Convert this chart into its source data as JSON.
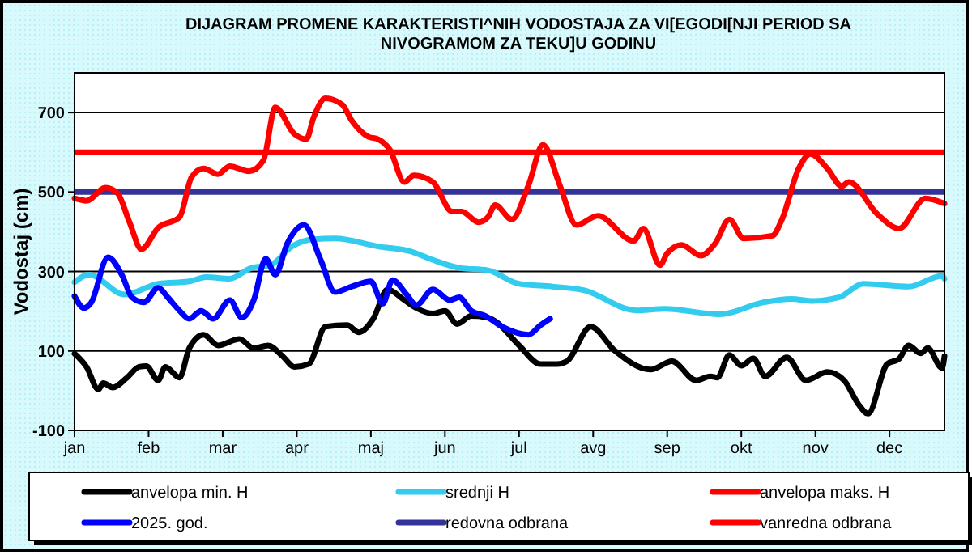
{
  "chart_data": {
    "type": "line",
    "title": "DIJAGRAM PROMENE  KARAKTERISTI^NIH  VODOSTAJA ZA VI[EGODI[NJI PERIOD  SA\nNIVOGRAMOM ZA TEKU]U  GODINU",
    "ylabel": "Vodostaj (cm)",
    "xlim": [
      "--01-01",
      "--12-31"
    ],
    "xticks": [
      {
        "value": "--01-01",
        "label": "jan"
      },
      {
        "value": "--02-01",
        "label": "feb"
      },
      {
        "value": "--03-04",
        "label": "mar"
      },
      {
        "value": "--04-04",
        "label": "apr"
      },
      {
        "value": "--05-05",
        "label": "maj"
      },
      {
        "value": "--06-05",
        "label": "jun"
      },
      {
        "value": "--07-06",
        "label": "jul"
      },
      {
        "value": "--08-06",
        "label": "avg"
      },
      {
        "value": "--09-06",
        "label": "sep"
      },
      {
        "value": "--10-07",
        "label": "okt"
      },
      {
        "value": "--11-07",
        "label": "nov"
      },
      {
        "value": "--12-08",
        "label": "dec"
      }
    ],
    "ylim": [
      -100,
      800
    ],
    "yticks": [
      -100,
      100,
      300,
      500,
      700
    ],
    "grid": "y",
    "legend": "bottom",
    "series": [
      {
        "name": "anvelopa min. H",
        "color": "#000000",
        "x": [
          "--01-01",
          "--01-06",
          "--01-11",
          "--01-13",
          "--01-17",
          "--01-23",
          "--01-28",
          "--01-31",
          "--02-05",
          "--02-08",
          "--02-14",
          "--02-18",
          "--02-24",
          "--03-02",
          "--03-11",
          "--03-17",
          "--03-23",
          "--03-29",
          "--04-03",
          "--04-09",
          "--04-16",
          "--04-25",
          "--04-30",
          "--05-06",
          "--05-12",
          "--05-19",
          "--05-24",
          "--05-31",
          "--06-05",
          "--06-10",
          "--06-16",
          "--06-22",
          "--06-26",
          "--07-06",
          "--07-15",
          "--07-22",
          "--07-26",
          "--08-05",
          "--08-15",
          "--08-30",
          "--09-08",
          "--09-18",
          "--09-24",
          "--09-27",
          "--10-02",
          "--10-07",
          "--10-12",
          "--10-17",
          "--10-26",
          "--11-03",
          "--11-12",
          "--11-19",
          "--11-25",
          "--11-29",
          "--12-07",
          "--12-12",
          "--12-16",
          "--12-21",
          "--12-24",
          "--12-30",
          "--12-31"
        ],
        "values": [
          93,
          60,
          3,
          19,
          8,
          33,
          60,
          62,
          26,
          60,
          33,
          107,
          141,
          114,
          130,
          107,
          114,
          87,
          60,
          67,
          161,
          165,
          147,
          181,
          255,
          228,
          208,
          194,
          201,
          168,
          188,
          185,
          175,
          114,
          67,
          67,
          74,
          161,
          101,
          53,
          74,
          26,
          36,
          33,
          90,
          63,
          81,
          36,
          84,
          26,
          47,
          26,
          -34,
          -58,
          67,
          80,
          114,
          94,
          107,
          57,
          87
        ]
      },
      {
        "name": "srednji H",
        "color": "#33ccee",
        "x": [
          "--01-01",
          "--01-07",
          "--01-22",
          "--02-05",
          "--02-18",
          "--02-25",
          "--03-07",
          "--03-16",
          "--03-24",
          "--04-02",
          "--04-11",
          "--04-20",
          "--05-08",
          "--05-22",
          "--05-31",
          "--06-11",
          "--06-23",
          "--07-06",
          "--07-20",
          "--08-02",
          "--08-24",
          "--09-05",
          "--09-28",
          "--10-16",
          "--10-28",
          "--11-06",
          "--11-17",
          "--11-27",
          "--12-16",
          "--12-30",
          "--12-31"
        ],
        "values": [
          273,
          292,
          242,
          269,
          275,
          286,
          282,
          309,
          316,
          363,
          381,
          383,
          363,
          350,
          329,
          309,
          303,
          269,
          262,
          253,
          202,
          206,
          192,
          222,
          231,
          226,
          235,
          269,
          262,
          289,
          282
        ]
      },
      {
        "name": "anvelopa maks. H",
        "color": "#ff0000",
        "x": [
          "--01-01",
          "--01-06",
          "--01-14",
          "--01-19",
          "--01-24",
          "--01-29",
          "--02-05",
          "--02-14",
          "--02-19",
          "--02-24",
          "--03-02",
          "--03-07",
          "--03-15",
          "--03-21",
          "--03-26",
          "--04-03",
          "--04-08",
          "--04-11",
          "--04-16",
          "--04-23",
          "--04-27",
          "--05-04",
          "--05-08",
          "--05-13",
          "--05-19",
          "--05-23",
          "--05-31",
          "--06-08",
          "--06-12",
          "--06-19",
          "--06-23",
          "--06-26",
          "--07-03",
          "--07-10",
          "--07-16",
          "--07-23",
          "--07-30",
          "--08-08",
          "--08-23",
          "--08-27",
          "--09-03",
          "--09-06",
          "--09-12",
          "--09-20",
          "--09-26",
          "--10-02",
          "--10-08",
          "--10-20",
          "--10-24",
          "--10-31",
          "--11-05",
          "--11-12",
          "--11-18",
          "--11-21",
          "--12-03",
          "--12-12",
          "--12-23",
          "--12-31"
        ],
        "values": [
          484,
          478,
          511,
          497,
          424,
          356,
          410,
          437,
          538,
          559,
          545,
          565,
          552,
          579,
          713,
          646,
          633,
          687,
          736,
          720,
          680,
          639,
          633,
          606,
          525,
          542,
          525,
          451,
          451,
          424,
          437,
          467,
          431,
          518,
          619,
          518,
          417,
          440,
          377,
          408,
          316,
          346,
          367,
          340,
          370,
          431,
          383,
          390,
          431,
          559,
          596,
          559,
          515,
          525,
          444,
          408,
          484,
          471
        ]
      },
      {
        "name": "2025. god.",
        "color": "#0000ff",
        "x": [
          "--01-01",
          "--01-05",
          "--01-08",
          "--01-15",
          "--01-21",
          "--01-25",
          "--01-30",
          "--02-05",
          "--02-09",
          "--02-14",
          "--02-18",
          "--02-23",
          "--02-28",
          "--03-07",
          "--03-12",
          "--03-17",
          "--03-22",
          "--03-26",
          "--03-31",
          "--04-07",
          "--04-14",
          "--04-20",
          "--04-27",
          "--05-05",
          "--05-10",
          "--05-14",
          "--05-20",
          "--05-24",
          "--05-31",
          "--06-07",
          "--06-11",
          "--06-16",
          "--06-22",
          "--06-29",
          "--07-10",
          "--07-15",
          "--07-19"
        ],
        "values": [
          238,
          208,
          222,
          336,
          289,
          235,
          222,
          259,
          235,
          201,
          181,
          201,
          181,
          228,
          184,
          228,
          332,
          292,
          370,
          417,
          329,
          248,
          262,
          275,
          219,
          278,
          242,
          215,
          255,
          228,
          235,
          201,
          188,
          161,
          141,
          165,
          181
        ]
      }
    ],
    "ref_lines": [
      {
        "axis": "y",
        "value": 500,
        "label": "redovna odbrana",
        "color": "#333399"
      },
      {
        "axis": "y",
        "value": 600,
        "label": "vanredna odbrana",
        "color": "#ff0000"
      }
    ]
  }
}
